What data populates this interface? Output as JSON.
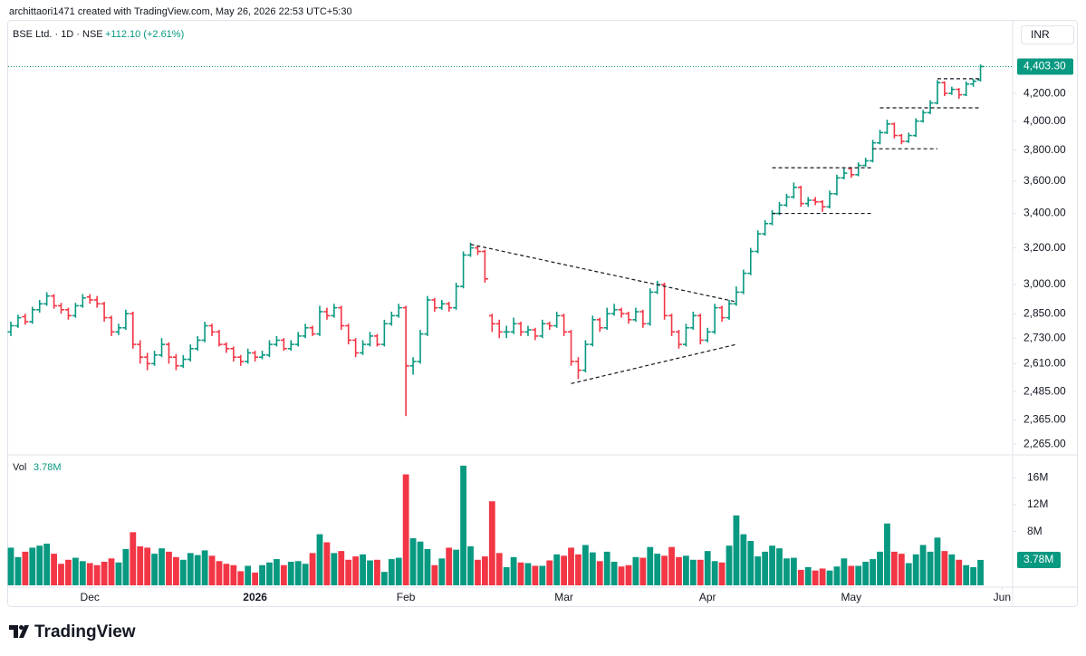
{
  "header": "archittaori1471 created with TradingView.com, May 26, 2026 22:53 UTC+5:30",
  "logo": "TradingView",
  "chart_data": [
    {
      "type": "ohlc",
      "title": "BSE Ltd. · 1D · NSE",
      "currency": "INR",
      "change": {
        "value": 112.1,
        "label": "+112.10 (+2.61%)"
      },
      "last": {
        "value": 4403.3,
        "label": "4,403.30"
      },
      "log_scale": true,
      "grid": false,
      "up_color": "#089981",
      "down_color": "#f23645",
      "ylim": [
        2230,
        4780
      ],
      "yticks": [
        {
          "value": 2265,
          "label": "2,265.00"
        },
        {
          "value": 2365,
          "label": "2,365.00"
        },
        {
          "value": 2485,
          "label": "2,485.00"
        },
        {
          "value": 2610,
          "label": "2,610.00"
        },
        {
          "value": 2730,
          "label": "2,730.00"
        },
        {
          "value": 2850,
          "label": "2,850.00"
        },
        {
          "value": 3000,
          "label": "3,000.00"
        },
        {
          "value": 3200,
          "label": "3,200.00"
        },
        {
          "value": 3400,
          "label": "3,400.00"
        },
        {
          "value": 3600,
          "label": "3,600.00"
        },
        {
          "value": 3800,
          "label": "3,800.00"
        },
        {
          "value": 4000,
          "label": "4,000.00"
        },
        {
          "value": 4200,
          "label": "4,200.00"
        }
      ],
      "xticks": [
        {
          "value": 11,
          "label": "Dec"
        },
        {
          "value": 34,
          "label": "2026"
        },
        {
          "value": 55,
          "label": "Feb"
        },
        {
          "value": 77,
          "label": "Mar"
        },
        {
          "value": 97,
          "label": "Apr"
        },
        {
          "value": 117,
          "label": "May"
        },
        {
          "value": 138,
          "label": "Jun"
        }
      ],
      "ohlc": [
        [
          2760,
          2810,
          2740,
          2790
        ],
        [
          2790,
          2845,
          2780,
          2830
        ],
        [
          2835,
          2850,
          2795,
          2810
        ],
        [
          2810,
          2885,
          2800,
          2870
        ],
        [
          2870,
          2920,
          2855,
          2900
        ],
        [
          2900,
          2960,
          2890,
          2940
        ],
        [
          2940,
          2950,
          2875,
          2890
        ],
        [
          2890,
          2905,
          2850,
          2870
        ],
        [
          2870,
          2880,
          2820,
          2840
        ],
        [
          2840,
          2905,
          2830,
          2890
        ],
        [
          2890,
          2950,
          2880,
          2930
        ],
        [
          2935,
          2950,
          2900,
          2920
        ],
        [
          2920,
          2940,
          2880,
          2900
        ],
        [
          2900,
          2910,
          2810,
          2830
        ],
        [
          2830,
          2840,
          2740,
          2760
        ],
        [
          2760,
          2800,
          2745,
          2780
        ],
        [
          2780,
          2870,
          2770,
          2850
        ],
        [
          2850,
          2860,
          2680,
          2700
        ],
        [
          2700,
          2720,
          2610,
          2640
        ],
        [
          2640,
          2660,
          2580,
          2610
        ],
        [
          2610,
          2670,
          2600,
          2650
        ],
        [
          2650,
          2730,
          2640,
          2700
        ],
        [
          2700,
          2710,
          2610,
          2640
        ],
        [
          2640,
          2655,
          2580,
          2600
        ],
        [
          2600,
          2650,
          2590,
          2630
        ],
        [
          2630,
          2700,
          2620,
          2680
        ],
        [
          2680,
          2740,
          2670,
          2720
        ],
        [
          2720,
          2810,
          2710,
          2790
        ],
        [
          2790,
          2800,
          2740,
          2760
        ],
        [
          2760,
          2770,
          2690,
          2700
        ],
        [
          2700,
          2710,
          2660,
          2680
        ],
        [
          2680,
          2690,
          2620,
          2640
        ],
        [
          2640,
          2650,
          2600,
          2620
        ],
        [
          2620,
          2680,
          2610,
          2660
        ],
        [
          2660,
          2670,
          2620,
          2640
        ],
        [
          2640,
          2670,
          2630,
          2650
        ],
        [
          2650,
          2720,
          2640,
          2700
        ],
        [
          2700,
          2740,
          2690,
          2720
        ],
        [
          2720,
          2730,
          2670,
          2680
        ],
        [
          2680,
          2720,
          2670,
          2700
        ],
        [
          2700,
          2760,
          2690,
          2740
        ],
        [
          2740,
          2800,
          2730,
          2780
        ],
        [
          2780,
          2790,
          2740,
          2750
        ],
        [
          2750,
          2890,
          2740,
          2860
        ],
        [
          2860,
          2880,
          2820,
          2840
        ],
        [
          2840,
          2900,
          2830,
          2880
        ],
        [
          2880,
          2890,
          2770,
          2790
        ],
        [
          2790,
          2800,
          2700,
          2720
        ],
        [
          2720,
          2730,
          2640,
          2660
        ],
        [
          2660,
          2720,
          2650,
          2700
        ],
        [
          2700,
          2760,
          2690,
          2740
        ],
        [
          2740,
          2750,
          2690,
          2700
        ],
        [
          2700,
          2820,
          2690,
          2800
        ],
        [
          2800,
          2860,
          2790,
          2840
        ],
        [
          2840,
          2900,
          2830,
          2880
        ],
        [
          2880,
          2890,
          2380,
          2600
        ],
        [
          2600,
          2640,
          2560,
          2620
        ],
        [
          2620,
          2770,
          2610,
          2750
        ],
        [
          2750,
          2940,
          2740,
          2920
        ],
        [
          2920,
          2930,
          2860,
          2880
        ],
        [
          2880,
          2920,
          2870,
          2900
        ],
        [
          2900,
          2910,
          2860,
          2880
        ],
        [
          2880,
          3010,
          2870,
          2990
        ],
        [
          2990,
          3180,
          2980,
          3160
        ],
        [
          3160,
          3230,
          3150,
          3200
        ],
        [
          3200,
          3210,
          3160,
          3180
        ],
        [
          3180,
          3190,
          3010,
          3030
        ],
        [
          2840,
          2850,
          2760,
          2800
        ],
        [
          2800,
          2820,
          2730,
          2760
        ],
        [
          2760,
          2790,
          2730,
          2760
        ],
        [
          2760,
          2830,
          2750,
          2800
        ],
        [
          2800,
          2810,
          2740,
          2760
        ],
        [
          2760,
          2790,
          2740,
          2770
        ],
        [
          2770,
          2780,
          2720,
          2740
        ],
        [
          2740,
          2820,
          2730,
          2800
        ],
        [
          2800,
          2810,
          2770,
          2790
        ],
        [
          2790,
          2860,
          2780,
          2840
        ],
        [
          2840,
          2850,
          2740,
          2760
        ],
        [
          2760,
          2770,
          2600,
          2620
        ],
        [
          2620,
          2640,
          2540,
          2580
        ],
        [
          2580,
          2720,
          2570,
          2700
        ],
        [
          2700,
          2840,
          2690,
          2820
        ],
        [
          2820,
          2830,
          2760,
          2780
        ],
        [
          2780,
          2880,
          2770,
          2850
        ],
        [
          2850,
          2900,
          2840,
          2870
        ],
        [
          2870,
          2880,
          2830,
          2850
        ],
        [
          2850,
          2860,
          2800,
          2820
        ],
        [
          2820,
          2880,
          2810,
          2860
        ],
        [
          2860,
          2870,
          2780,
          2800
        ],
        [
          2800,
          2980,
          2790,
          2960
        ],
        [
          2960,
          3020,
          2950,
          3000
        ],
        [
          3000,
          3010,
          2820,
          2840
        ],
        [
          2840,
          2850,
          2740,
          2760
        ],
        [
          2760,
          2770,
          2680,
          2700
        ],
        [
          2700,
          2800,
          2690,
          2780
        ],
        [
          2780,
          2860,
          2770,
          2840
        ],
        [
          2840,
          2850,
          2700,
          2720
        ],
        [
          2720,
          2780,
          2710,
          2760
        ],
        [
          2760,
          2900,
          2750,
          2880
        ],
        [
          2880,
          2890,
          2810,
          2830
        ],
        [
          2830,
          2920,
          2820,
          2900
        ],
        [
          2900,
          2990,
          2890,
          2960
        ],
        [
          2960,
          3080,
          2950,
          3060
        ],
        [
          3060,
          3200,
          3050,
          3180
        ],
        [
          3180,
          3300,
          3170,
          3280
        ],
        [
          3280,
          3360,
          3270,
          3340
        ],
        [
          3340,
          3420,
          3330,
          3400
        ],
        [
          3400,
          3470,
          3390,
          3450
        ],
        [
          3450,
          3520,
          3440,
          3500
        ],
        [
          3500,
          3590,
          3490,
          3560
        ],
        [
          3560,
          3570,
          3440,
          3460
        ],
        [
          3460,
          3500,
          3440,
          3480
        ],
        [
          3480,
          3500,
          3450,
          3470
        ],
        [
          3470,
          3480,
          3410,
          3440
        ],
        [
          3440,
          3540,
          3430,
          3520
        ],
        [
          3520,
          3640,
          3510,
          3620
        ],
        [
          3620,
          3680,
          3610,
          3650
        ],
        [
          3680,
          3690,
          3620,
          3640
        ],
        [
          3640,
          3720,
          3630,
          3700
        ],
        [
          3700,
          3750,
          3690,
          3730
        ],
        [
          3730,
          3870,
          3720,
          3850
        ],
        [
          3850,
          3940,
          3840,
          3920
        ],
        [
          3920,
          4010,
          3910,
          3980
        ],
        [
          3980,
          3990,
          3880,
          3900
        ],
        [
          3900,
          3910,
          3840,
          3860
        ],
        [
          3860,
          3920,
          3850,
          3900
        ],
        [
          3900,
          4020,
          3890,
          4000
        ],
        [
          4000,
          4080,
          3990,
          4060
        ],
        [
          4060,
          4150,
          4050,
          4130
        ],
        [
          4130,
          4300,
          4120,
          4280
        ],
        [
          4280,
          4290,
          4180,
          4200
        ],
        [
          4200,
          4250,
          4190,
          4230
        ],
        [
          4230,
          4240,
          4160,
          4190
        ],
        [
          4190,
          4290,
          4180,
          4270
        ],
        [
          4270,
          4310,
          4250,
          4291.2
        ],
        [
          4300,
          4420,
          4290,
          4403.3
        ]
      ],
      "drawings": [
        {
          "from": [
            64,
            3220
          ],
          "to": [
            101,
            2910
          ]
        },
        {
          "from": [
            78,
            2520
          ],
          "to": [
            101,
            2700
          ]
        },
        {
          "from": [
            106,
            3685
          ],
          "to": [
            120,
            3685
          ]
        },
        {
          "from": [
            106,
            3400
          ],
          "to": [
            120,
            3400
          ]
        },
        {
          "from": [
            120,
            3810
          ],
          "to": [
            129,
            3810
          ]
        },
        {
          "from": [
            121,
            4095
          ],
          "to": [
            135,
            4095
          ]
        },
        {
          "from": [
            129,
            4310
          ],
          "to": [
            135,
            4310
          ]
        }
      ]
    },
    {
      "type": "bar",
      "title": "Vol",
      "last": {
        "value": 3.78,
        "label": "3.78M"
      },
      "ylim": [
        0,
        19
      ],
      "yticks": [
        {
          "value": 8,
          "label": "8M"
        },
        {
          "value": 12,
          "label": "12M"
        },
        {
          "value": 16,
          "label": "16M"
        }
      ],
      "values": [
        5.6,
        4.2,
        5.0,
        5.6,
        5.9,
        6.2,
        4.7,
        3.2,
        3.8,
        4.1,
        3.6,
        3.3,
        3.0,
        3.5,
        4.0,
        3.4,
        5.4,
        7.9,
        5.8,
        5.6,
        4.7,
        5.5,
        5.0,
        4.2,
        3.8,
        4.8,
        4.5,
        5.2,
        4.4,
        3.6,
        3.2,
        3.0,
        2.1,
        2.9,
        1.9,
        3.0,
        3.4,
        3.9,
        3.0,
        3.5,
        3.6,
        3.2,
        4.8,
        7.6,
        6.4,
        4.8,
        5.1,
        3.8,
        4.3,
        4.6,
        3.7,
        3.8,
        2.0,
        3.9,
        4.1,
        16.5,
        7.0,
        6.5,
        5.4,
        3.0,
        4.0,
        5.6,
        5.3,
        17.8,
        5.8,
        3.8,
        4.3,
        12.5,
        4.8,
        2.7,
        4.2,
        3.4,
        3.3,
        2.9,
        2.9,
        3.7,
        4.6,
        4.4,
        5.6,
        4.6,
        6.0,
        4.9,
        3.6,
        5.0,
        3.5,
        2.8,
        3.0,
        4.2,
        4.1,
        5.7,
        4.7,
        4.4,
        5.7,
        4.2,
        4.4,
        3.8,
        3.8,
        5.1,
        3.6,
        3.4,
        5.9,
        10.4,
        7.6,
        6.6,
        4.3,
        5.0,
        5.9,
        5.5,
        4.0,
        4.1,
        2.3,
        2.7,
        2.2,
        2.5,
        2.2,
        2.8,
        4.0,
        2.9,
        2.9,
        3.5,
        3.9,
        5.0,
        9.2,
        5.0,
        4.7,
        3.3,
        4.6,
        6.0,
        5.0,
        7.1,
        5.1,
        4.6,
        3.8,
        3.0,
        2.7,
        3.78
      ]
    }
  ]
}
